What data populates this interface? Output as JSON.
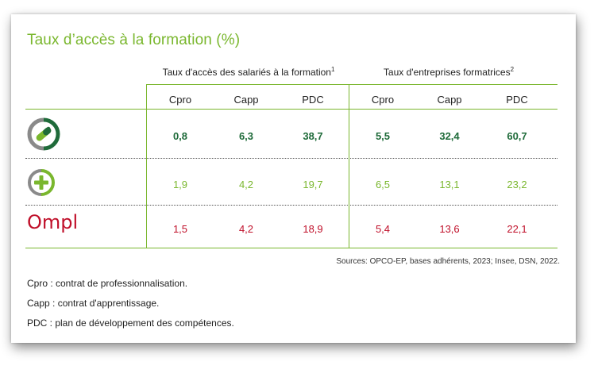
{
  "title": "Taux d’accès à la formation (%)",
  "groups": [
    {
      "label": "Taux d'accès des salariés à la formation",
      "note_mark": "1"
    },
    {
      "label": "Taux d'entreprises formatrices",
      "note_mark": "2"
    }
  ],
  "columns": [
    "Cpro",
    "Capp",
    "PDC",
    "Cpro",
    "Capp",
    "PDC"
  ],
  "rows": [
    {
      "logo": "opco-ep-capsule-icon",
      "values": [
        "0,8",
        "6,3",
        "38,7",
        "5,5",
        "32,4",
        "60,7"
      ],
      "color": "#1f6b3a"
    },
    {
      "logo": "plus-circle-icon",
      "values": [
        "1,9",
        "4,2",
        "19,7",
        "6,5",
        "13,1",
        "23,2"
      ],
      "color": "#7ab72e"
    },
    {
      "logo": "ompl-logo",
      "logo_text": "Ompl",
      "values": [
        "1,5",
        "4,2",
        "18,9",
        "5,4",
        "13,6",
        "22,1"
      ],
      "color": "#c0102a"
    }
  ],
  "source": "Sources: OPCO-EP, bases adhérents, 2023; Insee, DSN, 2022.",
  "notes": [
    "Cpro : contrat de professionnalisation.",
    "Capp : contrat d'apprentissage.",
    "PDC : plan de développement des compétences."
  ]
}
